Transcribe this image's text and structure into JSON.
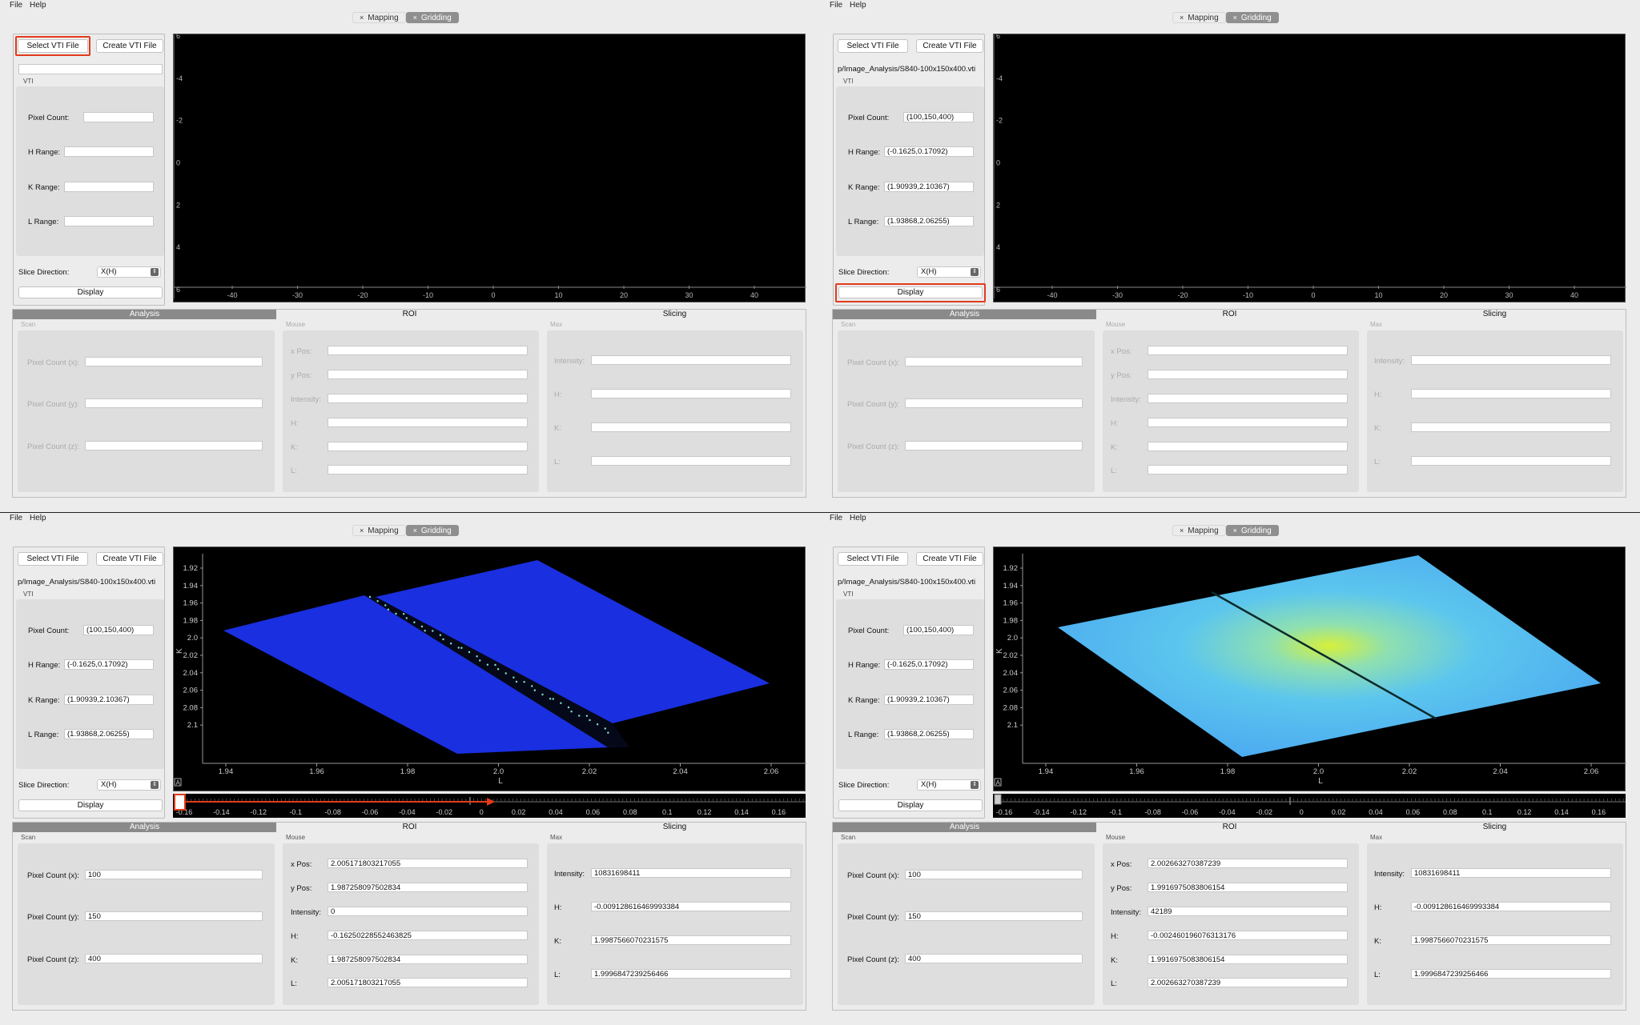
{
  "menu": {
    "file": "File",
    "help": "Help"
  },
  "tabs": {
    "mapping": "Mapping",
    "gridding": "Gridding",
    "close": "×"
  },
  "controls": {
    "select_vti": "Select VTI File",
    "create_vti": "Create VTI File",
    "vti_label": "VTI",
    "pixel_count_label": "Pixel Count:",
    "h_range_label": "H Range:",
    "k_range_label": "K Range:",
    "l_range_label": "L Range:",
    "slice_direction_label": "Slice Direction:",
    "slice_direction_value": "X(H)",
    "display": "Display"
  },
  "file_path": "p/Image_Analysis/S840-100x150x400.vti",
  "file_info": {
    "pixel_count": "(100,150,400)",
    "h_range": "(-0.1625,0.17092)",
    "k_range": "(1.90939,2.10367)",
    "l_range": "(1.93868,2.06255)"
  },
  "bottom_tabs": {
    "analysis": "Analysis",
    "roi": "ROI",
    "slicing": "Slicing"
  },
  "groups": {
    "scan": "Scan",
    "mouse": "Mouse",
    "max": "Max"
  },
  "labels": {
    "pcx": "Pixel Count (x):",
    "pcy": "Pixel Count (y):",
    "pcz": "Pixel Count (z):",
    "xpos": "x Pos:",
    "ypos": "y Pos:",
    "intensity": "Intensity:",
    "h": "H:",
    "k": "K:",
    "l": "L:"
  },
  "empty_plot": {
    "x_ticks": [
      "-40",
      "-30",
      "-20",
      "-10",
      "0",
      "10",
      "20",
      "30",
      "40"
    ],
    "y_ticks": [
      "6",
      "-4",
      "-2",
      "0",
      "2",
      "4",
      "6"
    ]
  },
  "data_plot": {
    "x_label": "L",
    "y_label": "K",
    "corner": "A",
    "x_ticks": [
      "1.94",
      "1.96",
      "1.98",
      "2.0",
      "2.02",
      "2.04",
      "2.06"
    ],
    "y_ticks": [
      "1.92",
      "1.94",
      "1.96",
      "1.98",
      "2.0",
      "2.02",
      "2.04",
      "2.06",
      "2.08",
      "2.1"
    ]
  },
  "slider_ticks": [
    "-0.16",
    "-0.14",
    "-0.12",
    "-0.1",
    "-0.08",
    "-0.06",
    "-0.04",
    "-0.02",
    "0",
    "0.02",
    "0.04",
    "0.06",
    "0.08",
    "0.1",
    "0.12",
    "0.14",
    "0.16"
  ],
  "scan_values": {
    "pcx": "100",
    "pcy": "150",
    "pcz": "400"
  },
  "max_values": {
    "intensity": "10831698411",
    "h": "-0.009128616469993384",
    "k": "1.9987566070231575",
    "l": "1.9996847239256466"
  },
  "mouse_bl": {
    "xpos": "2.005171803217055",
    "ypos": "1.987258097502834",
    "intensity": "0",
    "h": "-0.16250228552463825",
    "k": "1.987258097502834",
    "l": "2.005171803217055"
  },
  "mouse_br": {
    "xpos": "2.002663270387239",
    "ypos": "1.9916975083806154",
    "intensity": "42189",
    "h": "-0.002460196076313176",
    "k": "1.9916975083806154",
    "l": "2.002663270387239"
  },
  "colors": {
    "highlight": "#e23b1c",
    "blue_data": "#1a2fe0",
    "cyan_data": "#4aa8f0",
    "yellow_peak": "#d6f03a"
  }
}
